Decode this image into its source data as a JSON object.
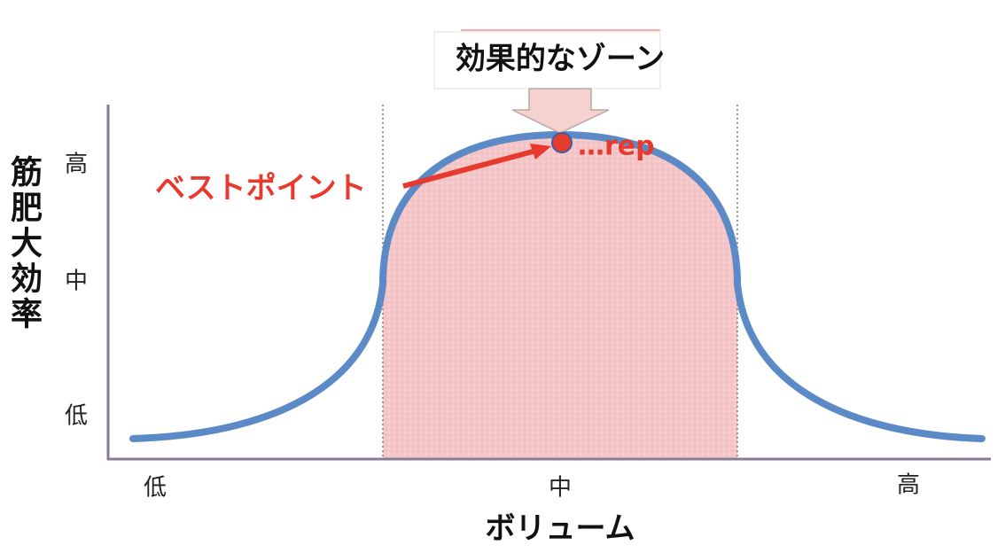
{
  "title": "効果的なゾーン",
  "y_axis": {
    "label": "筋肥大効率",
    "ticks": [
      "高",
      "中",
      "低"
    ]
  },
  "x_axis": {
    "label": "ボリューム",
    "ticks": [
      "低",
      "中",
      "高"
    ]
  },
  "annotations": {
    "best_point": "ベストポイント",
    "rep": "…rep"
  }
}
